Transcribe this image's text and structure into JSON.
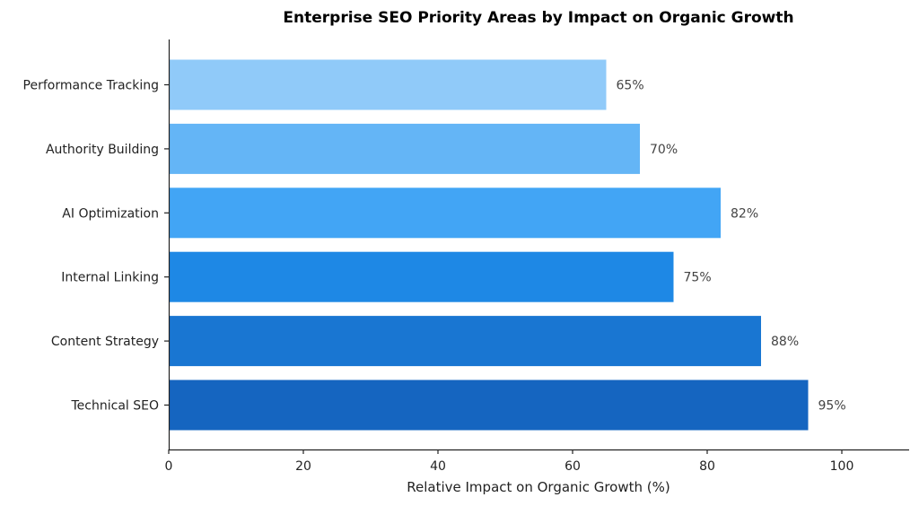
{
  "chart_data": {
    "type": "bar",
    "orientation": "horizontal",
    "title": "Enterprise SEO Priority Areas by Impact on Organic Growth",
    "xlabel": "Relative Impact on Organic Growth (%)",
    "ylabel": "",
    "xlim": [
      0,
      110
    ],
    "xticks": [
      0,
      20,
      40,
      60,
      80,
      100
    ],
    "grid": false,
    "categories": [
      "Technical SEO",
      "Content Strategy",
      "Internal Linking",
      "AI Optimization",
      "Authority Building",
      "Performance Tracking"
    ],
    "values": [
      95,
      88,
      75,
      82,
      70,
      65
    ],
    "value_labels": [
      "95%",
      "88%",
      "75%",
      "82%",
      "70%",
      "65%"
    ],
    "colors": [
      "#1565c0",
      "#1976d2",
      "#1e88e5",
      "#42a5f5",
      "#64b5f6",
      "#90caf9"
    ]
  }
}
